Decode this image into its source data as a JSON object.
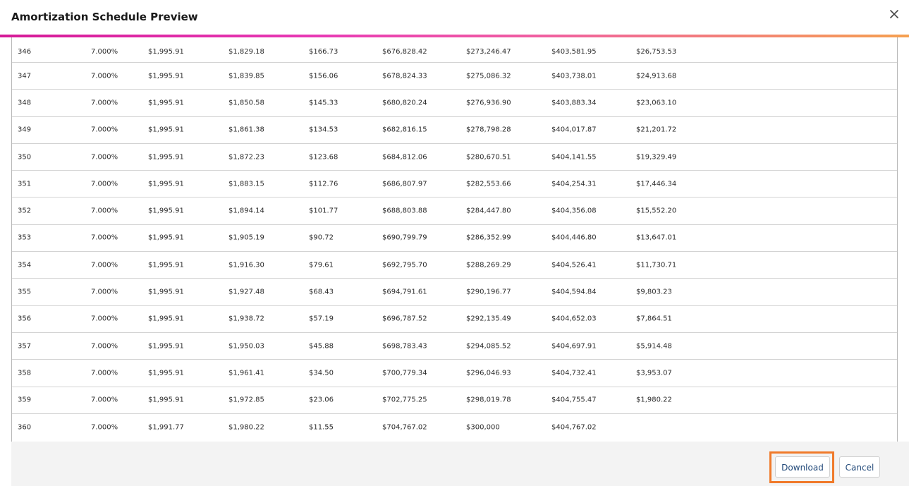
{
  "dialog": {
    "title": "Amortization Schedule Preview",
    "close_icon": "close-icon"
  },
  "accent_gradient": [
    "#d51a97",
    "#e839b5",
    "#f060a0",
    "#f5a050"
  ],
  "table": {
    "rows": [
      [
        "346",
        "7.000%",
        "$1,995.91",
        "$1,829.18",
        "$166.73",
        "$676,828.42",
        "$273,246.47",
        "$403,581.95",
        "$26,753.53"
      ],
      [
        "347",
        "7.000%",
        "$1,995.91",
        "$1,839.85",
        "$156.06",
        "$678,824.33",
        "$275,086.32",
        "$403,738.01",
        "$24,913.68"
      ],
      [
        "348",
        "7.000%",
        "$1,995.91",
        "$1,850.58",
        "$145.33",
        "$680,820.24",
        "$276,936.90",
        "$403,883.34",
        "$23,063.10"
      ],
      [
        "349",
        "7.000%",
        "$1,995.91",
        "$1,861.38",
        "$134.53",
        "$682,816.15",
        "$278,798.28",
        "$404,017.87",
        "$21,201.72"
      ],
      [
        "350",
        "7.000%",
        "$1,995.91",
        "$1,872.23",
        "$123.68",
        "$684,812.06",
        "$280,670.51",
        "$404,141.55",
        "$19,329.49"
      ],
      [
        "351",
        "7.000%",
        "$1,995.91",
        "$1,883.15",
        "$112.76",
        "$686,807.97",
        "$282,553.66",
        "$404,254.31",
        "$17,446.34"
      ],
      [
        "352",
        "7.000%",
        "$1,995.91",
        "$1,894.14",
        "$101.77",
        "$688,803.88",
        "$284,447.80",
        "$404,356.08",
        "$15,552.20"
      ],
      [
        "353",
        "7.000%",
        "$1,995.91",
        "$1,905.19",
        "$90.72",
        "$690,799.79",
        "$286,352.99",
        "$404,446.80",
        "$13,647.01"
      ],
      [
        "354",
        "7.000%",
        "$1,995.91",
        "$1,916.30",
        "$79.61",
        "$692,795.70",
        "$288,269.29",
        "$404,526.41",
        "$11,730.71"
      ],
      [
        "355",
        "7.000%",
        "$1,995.91",
        "$1,927.48",
        "$68.43",
        "$694,791.61",
        "$290,196.77",
        "$404,594.84",
        "$9,803.23"
      ],
      [
        "356",
        "7.000%",
        "$1,995.91",
        "$1,938.72",
        "$57.19",
        "$696,787.52",
        "$292,135.49",
        "$404,652.03",
        "$7,864.51"
      ],
      [
        "357",
        "7.000%",
        "$1,995.91",
        "$1,950.03",
        "$45.88",
        "$698,783.43",
        "$294,085.52",
        "$404,697.91",
        "$5,914.48"
      ],
      [
        "358",
        "7.000%",
        "$1,995.91",
        "$1,961.41",
        "$34.50",
        "$700,779.34",
        "$296,046.93",
        "$404,732.41",
        "$3,953.07"
      ],
      [
        "359",
        "7.000%",
        "$1,995.91",
        "$1,972.85",
        "$23.06",
        "$702,775.25",
        "$298,019.78",
        "$404,755.47",
        "$1,980.22"
      ],
      [
        "360",
        "7.000%",
        "$1,991.77",
        "$1,980.22",
        "$11.55",
        "$704,767.02",
        "$300,000",
        "$404,767.02",
        ""
      ]
    ]
  },
  "footer": {
    "download_label": "Download",
    "cancel_label": "Cancel",
    "highlight_color": "#f07a2a"
  }
}
